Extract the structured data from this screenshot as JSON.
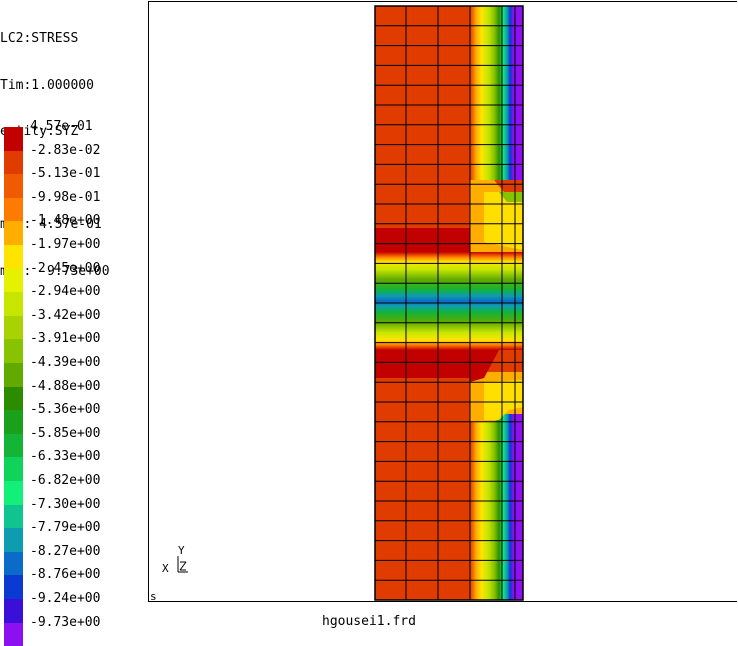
{
  "info": {
    "lines": [
      "LC2:STRESS",
      "Tim:1.000000",
      "entity:SYZ",
      "",
      "max: 4.57e-01",
      "min: -9.73e+00"
    ]
  },
  "legend": {
    "labels": [
      "4.57e-01",
      "-2.83e-02",
      "-5.13e-01",
      "-9.98e-01",
      "-1.48e+00",
      "-1.97e+00",
      "-2.45e+00",
      "-2.94e+00",
      "-3.42e+00",
      "-3.91e+00",
      "-4.39e+00",
      "-4.88e+00",
      "-5.36e+00",
      "-5.85e+00",
      "-6.33e+00",
      "-6.82e+00",
      "-7.30e+00",
      "-7.79e+00",
      "-8.27e+00",
      "-8.76e+00",
      "-9.24e+00",
      "-9.73e+00"
    ],
    "colors": [
      "#c20000",
      "#e03c00",
      "#f05a00",
      "#ff7a00",
      "#ffae00",
      "#ffe400",
      "#e4f200",
      "#c6e600",
      "#a8d200",
      "#88c200",
      "#62aa00",
      "#2c8c00",
      "#1aa01a",
      "#14b436",
      "#10d45a",
      "#12f07a",
      "#10c490",
      "#0e9cb0",
      "#0a6cc8",
      "#0a3ad2",
      "#3a10d8",
      "#8c10f0"
    ]
  },
  "axis": {
    "x": "X",
    "y": "Y",
    "z": "Z"
  },
  "corner_mark": "s",
  "filename": "hgousei1.frd"
}
